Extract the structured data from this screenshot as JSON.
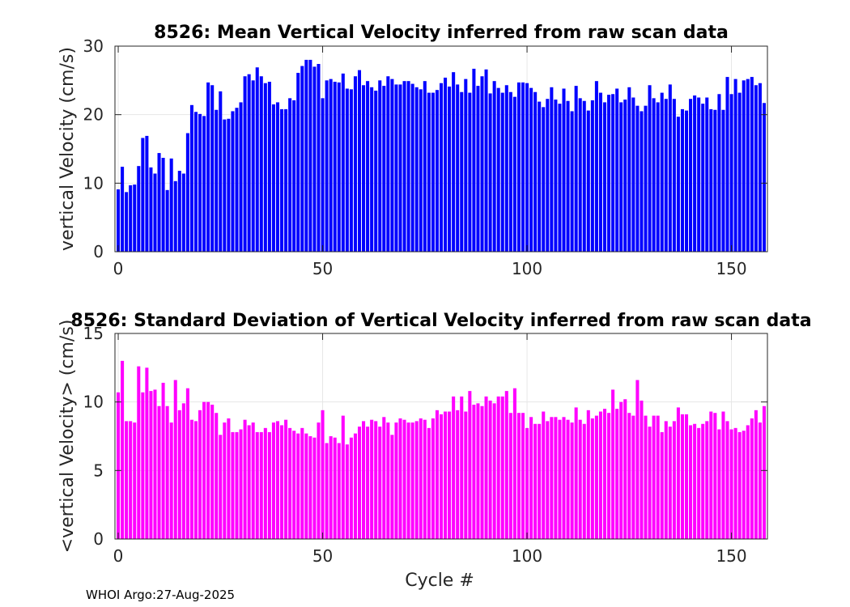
{
  "footer": "WHOI Argo:27-Aug-2025",
  "chart_data": [
    {
      "type": "bar",
      "title": "8526: Mean Vertical Velocity inferred from raw scan data",
      "xlabel": "",
      "ylabel": "vertical Velocity (cm/s)",
      "xlim": [
        -0.8,
        158.8
      ],
      "ylim": [
        0,
        30
      ],
      "xticks": [
        0,
        50,
        100,
        150
      ],
      "yticks": [
        0,
        10,
        20,
        30
      ],
      "grid": true,
      "color": "#0000ff",
      "x_start": 0,
      "values": [
        9.1,
        12.4,
        8.7,
        9.7,
        9.8,
        12.5,
        16.6,
        16.9,
        12.3,
        11.4,
        14.4,
        13.7,
        9.0,
        13.6,
        10.3,
        11.8,
        11.4,
        17.3,
        21.4,
        20.4,
        20.1,
        19.8,
        24.7,
        24.3,
        20.7,
        23.4,
        19.3,
        19.4,
        20.5,
        21.0,
        21.8,
        25.6,
        25.9,
        25.0,
        26.9,
        25.6,
        24.6,
        24.8,
        21.5,
        21.8,
        20.8,
        20.8,
        22.4,
        22.1,
        26.1,
        27.1,
        28.0,
        28.0,
        27.0,
        27.4,
        22.4,
        25.0,
        25.2,
        24.8,
        24.7,
        26.0,
        23.8,
        23.7,
        25.6,
        26.5,
        24.3,
        24.9,
        24.0,
        23.5,
        25.0,
        24.2,
        25.6,
        25.2,
        24.4,
        24.4,
        24.9,
        24.9,
        24.5,
        24.0,
        23.7,
        24.9,
        23.2,
        23.2,
        23.6,
        24.6,
        25.4,
        24.1,
        26.2,
        24.4,
        23.3,
        25.2,
        23.2,
        26.7,
        24.2,
        25.6,
        26.6,
        23.1,
        24.9,
        23.9,
        23.2,
        24.3,
        23.3,
        22.6,
        24.7,
        24.7,
        24.6,
        23.9,
        23.3,
        21.9,
        21.1,
        22.3,
        24.0,
        22.2,
        21.6,
        23.8,
        22.0,
        20.5,
        24.2,
        22.4,
        22.0,
        20.6,
        22.1,
        24.9,
        23.2,
        21.8,
        22.9,
        23.0,
        23.8,
        21.8,
        22.2,
        24.0,
        22.5,
        21.3,
        20.5,
        21.3,
        24.3,
        22.4,
        21.8,
        23.2,
        22.3,
        24.4,
        22.3,
        19.7,
        20.8,
        20.6,
        22.3,
        22.8,
        22.5,
        21.6,
        22.5,
        20.8,
        20.7,
        23.0,
        20.7,
        25.5,
        23.0,
        25.2,
        23.2,
        25.0,
        25.2,
        25.5,
        24.3,
        24.6,
        21.7
      ]
    },
    {
      "type": "bar",
      "title": "8526: Standard Deviation of Vertical Velocity inferred from raw scan data",
      "xlabel": "Cycle #",
      "ylabel": "<vertical Velocity> (cm/s)",
      "xlim": [
        -0.8,
        158.8
      ],
      "ylim": [
        0,
        15
      ],
      "xticks": [
        0,
        50,
        100,
        150
      ],
      "yticks": [
        0,
        5,
        10,
        15
      ],
      "grid": true,
      "color": "#ff00ff",
      "x_start": 0,
      "values": [
        10.7,
        13.0,
        8.6,
        8.6,
        8.5,
        12.6,
        10.7,
        12.5,
        10.8,
        10.9,
        9.7,
        11.4,
        9.7,
        8.5,
        11.6,
        9.4,
        9.9,
        11.0,
        8.7,
        8.6,
        9.4,
        10.0,
        10.0,
        9.8,
        9.2,
        7.6,
        8.5,
        8.8,
        7.8,
        7.8,
        8.0,
        8.7,
        8.3,
        8.5,
        7.8,
        7.8,
        8.1,
        7.8,
        8.5,
        8.6,
        8.3,
        8.7,
        8.1,
        7.9,
        7.7,
        8.1,
        7.7,
        7.5,
        7.4,
        8.5,
        9.4,
        7.0,
        7.5,
        7.4,
        7.0,
        9.0,
        6.9,
        7.4,
        7.7,
        8.2,
        8.6,
        8.2,
        8.7,
        8.6,
        8.2,
        8.9,
        8.5,
        7.6,
        8.5,
        8.8,
        8.7,
        8.5,
        8.5,
        8.6,
        8.8,
        8.7,
        8.1,
        8.8,
        9.4,
        9.1,
        9.3,
        9.3,
        10.4,
        9.4,
        10.4,
        9.3,
        10.8,
        9.8,
        9.9,
        9.7,
        10.4,
        10.1,
        9.9,
        10.4,
        10.4,
        10.8,
        9.2,
        11.0,
        9.2,
        9.2,
        8.1,
        8.9,
        8.4,
        8.4,
        9.3,
        8.6,
        8.9,
        8.9,
        8.7,
        8.9,
        8.7,
        8.5,
        9.6,
        8.7,
        8.4,
        9.4,
        8.8,
        9.0,
        9.3,
        9.5,
        9.2,
        10.9,
        9.5,
        10.0,
        10.2,
        9.2,
        9.0,
        11.6,
        10.1,
        9.0,
        8.2,
        9.0,
        9.0,
        7.8,
        8.6,
        8.2,
        8.6,
        9.6,
        9.1,
        9.1,
        8.3,
        8.4,
        8.1,
        8.4,
        8.6,
        9.3,
        9.2,
        8.0,
        9.3,
        8.6,
        8.0,
        8.1,
        7.8,
        7.9,
        8.3,
        8.8,
        9.4,
        8.5,
        9.7
      ]
    }
  ]
}
